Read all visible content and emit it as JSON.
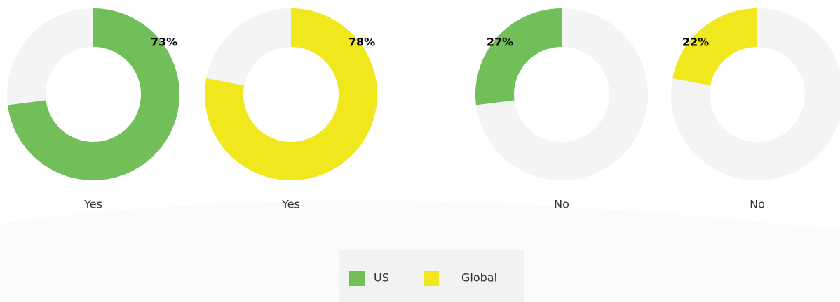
{
  "chart_data": [
    {
      "type": "pie",
      "categories": [
        "Yes"
      ],
      "series": [
        {
          "name": "US",
          "color": "#72bf5a",
          "values": [
            73
          ]
        }
      ],
      "value_labels": [
        "73%"
      ],
      "ylim": [
        0,
        100
      ],
      "clockwise": true
    },
    {
      "type": "pie",
      "categories": [
        "Yes"
      ],
      "series": [
        {
          "name": "Global",
          "color": "#f0e81c",
          "values": [
            78
          ]
        }
      ],
      "value_labels": [
        "78%"
      ],
      "ylim": [
        0,
        100
      ],
      "clockwise": true
    },
    {
      "type": "pie",
      "categories": [
        "No"
      ],
      "series": [
        {
          "name": "US",
          "color": "#72bf5a",
          "values": [
            27
          ]
        }
      ],
      "value_labels": [
        "27%"
      ],
      "ylim": [
        0,
        100
      ],
      "clockwise": false
    },
    {
      "type": "pie",
      "categories": [
        "No"
      ],
      "series": [
        {
          "name": "Global",
          "color": "#f0e81c",
          "values": [
            22
          ]
        }
      ],
      "value_labels": [
        "22%"
      ],
      "ylim": [
        0,
        100
      ],
      "clockwise": false
    }
  ]
}
